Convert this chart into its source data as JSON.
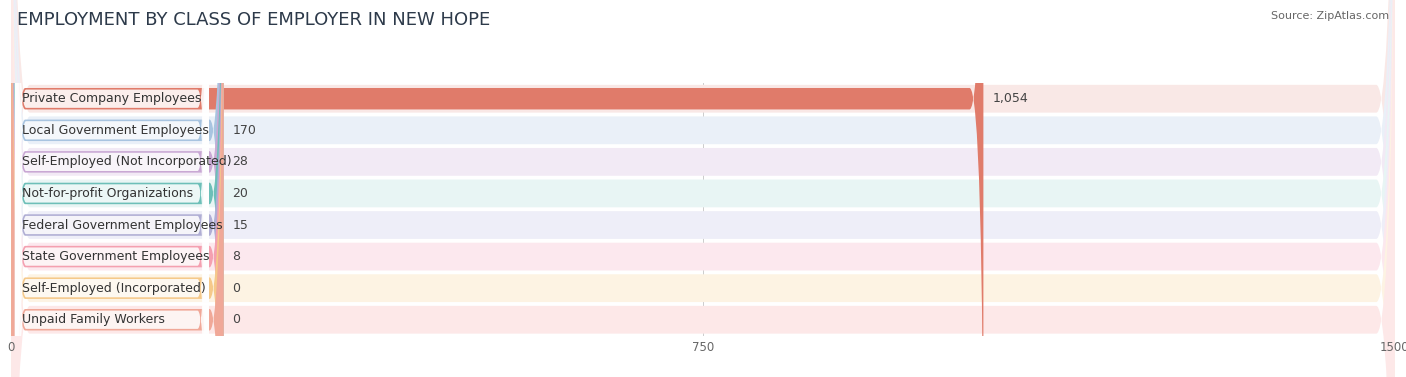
{
  "title": "EMPLOYMENT BY CLASS OF EMPLOYER IN NEW HOPE",
  "source": "Source: ZipAtlas.com",
  "categories": [
    "Private Company Employees",
    "Local Government Employees",
    "Self-Employed (Not Incorporated)",
    "Not-for-profit Organizations",
    "Federal Government Employees",
    "State Government Employees",
    "Self-Employed (Incorporated)",
    "Unpaid Family Workers"
  ],
  "values": [
    1054,
    170,
    28,
    20,
    15,
    8,
    0,
    0
  ],
  "bar_colors": [
    "#e07b6a",
    "#a8c4e0",
    "#c9a8d4",
    "#6dbfb8",
    "#b0aed4",
    "#f4a0b0",
    "#f5c98a",
    "#f0a898"
  ],
  "row_bg_colors": [
    "#f9e8e6",
    "#eaf0f8",
    "#f2eaf5",
    "#e8f5f4",
    "#eeeef8",
    "#fce8ee",
    "#fdf3e3",
    "#fde8e8"
  ],
  "xlim": [
    0,
    1500
  ],
  "xticks": [
    0,
    750,
    1500
  ],
  "title_fontsize": 13,
  "label_fontsize": 9,
  "value_fontsize": 9,
  "background_color": "#ffffff"
}
